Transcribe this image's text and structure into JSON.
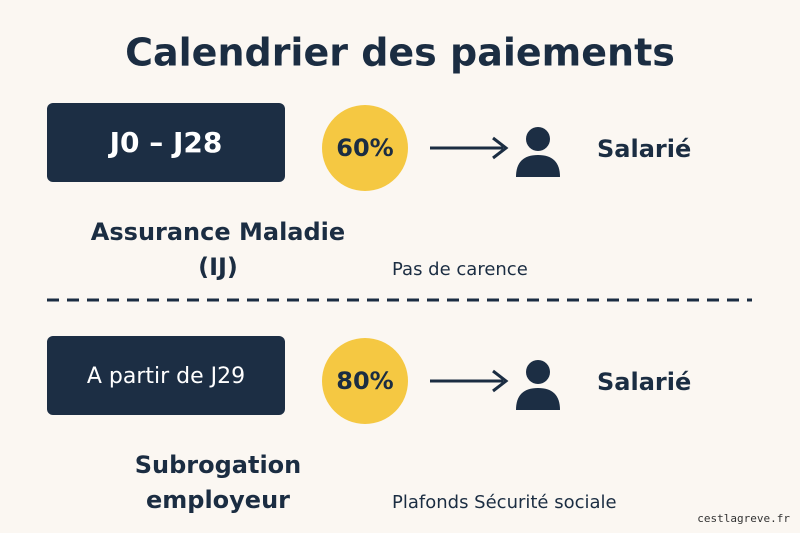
{
  "header": {
    "title": "Calendrier des paiements"
  },
  "rows": [
    {
      "period": "J0 – J28",
      "rate": "60%",
      "recipient": "Salarié",
      "payer": [
        "Assurance Maladie",
        "(IJ)"
      ],
      "note": "Pas de carence"
    },
    {
      "period": "A partir de J29",
      "rate": "80%",
      "recipient": "Salarié",
      "payer": [
        "Subrogation",
        "employeur"
      ],
      "note": "Plafonds Sécurité sociale"
    }
  ],
  "footer": {
    "source": "cestlagreve.fr"
  }
}
